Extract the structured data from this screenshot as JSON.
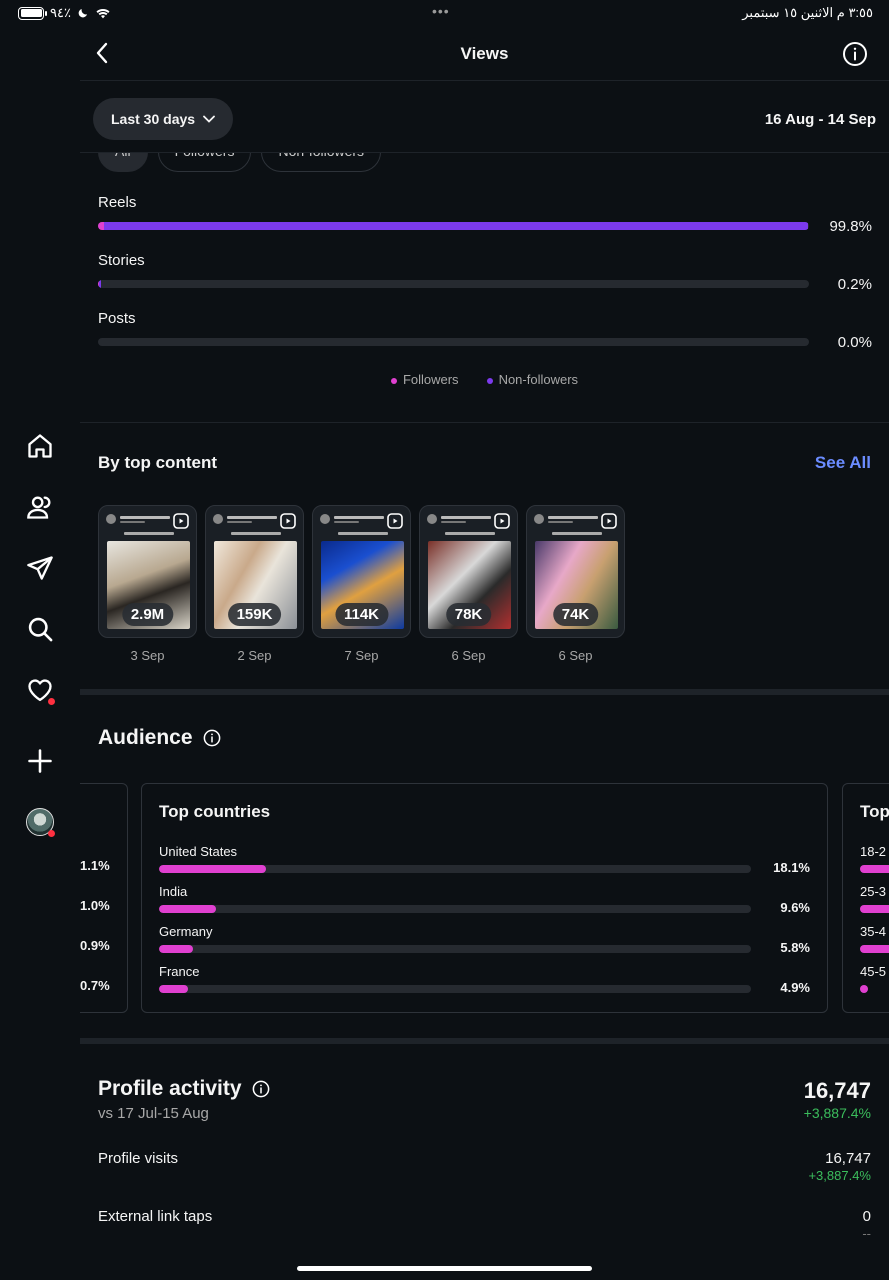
{
  "status_bar": {
    "battery": "٩٤٪",
    "time_date": "٣:٥٥ م   الاثنين ١٥ سبتمبر",
    "dots": "•••"
  },
  "header": {
    "title": "Views"
  },
  "filter": {
    "period_label": "Last 30 days",
    "date_range": "16 Aug - 14 Sep",
    "chips": [
      "All",
      "Followers",
      "Non-followers"
    ]
  },
  "content_breakdown": {
    "rows": [
      {
        "label": "Reels",
        "percent": "99.8%",
        "followers_fraction": 0.009,
        "nonfollowers_fraction": 0.989
      },
      {
        "label": "Stories",
        "percent": "0.2%",
        "followers_fraction": 0.002,
        "nonfollowers_fraction": 0.002
      },
      {
        "label": "Posts",
        "percent": "0.0%",
        "followers_fraction": 0.0,
        "nonfollowers_fraction": 0.0
      }
    ],
    "legend": [
      {
        "label": "Followers",
        "color": "#e040d0"
      },
      {
        "label": "Non-followers",
        "color": "#7c3aed"
      }
    ]
  },
  "top_content": {
    "title": "By top content",
    "see_all": "See All",
    "items": [
      {
        "count": "2.9M",
        "date": "3 Sep"
      },
      {
        "count": "159K",
        "date": "2 Sep"
      },
      {
        "count": "114K",
        "date": "7 Sep"
      },
      {
        "count": "78K",
        "date": "6 Sep"
      },
      {
        "count": "74K",
        "date": "6 Sep"
      }
    ]
  },
  "audience": {
    "title": "Audience",
    "prev_card_percents": [
      "1.1%",
      "1.0%",
      "0.9%",
      "0.7%"
    ],
    "top_countries": {
      "title": "Top countries",
      "rows": [
        {
          "label": "United States",
          "percent": "18.1%",
          "value": 18.1
        },
        {
          "label": "India",
          "percent": "9.6%",
          "value": 9.6
        },
        {
          "label": "Germany",
          "percent": "5.8%",
          "value": 5.8
        },
        {
          "label": "France",
          "percent": "4.9%",
          "value": 4.9
        }
      ]
    },
    "next_card": {
      "title": "Top",
      "labels": [
        "18-2",
        "25-3",
        "35-4",
        "45-5"
      ]
    }
  },
  "profile_activity": {
    "title": "Profile activity",
    "comparison": "vs 17 Jul-15 Aug",
    "total": "16,747",
    "total_change": "+3,887.4%",
    "rows": [
      {
        "label": "Profile visits",
        "value": "16,747",
        "change": "+3,887.4%"
      },
      {
        "label": "External link taps",
        "value": "0",
        "change": "--"
      }
    ]
  },
  "colors": {
    "background": "#0c1014",
    "followers": "#e040d0",
    "non_followers": "#7c3aed",
    "link": "#6b8cff",
    "positive": "#3bbd5c"
  }
}
